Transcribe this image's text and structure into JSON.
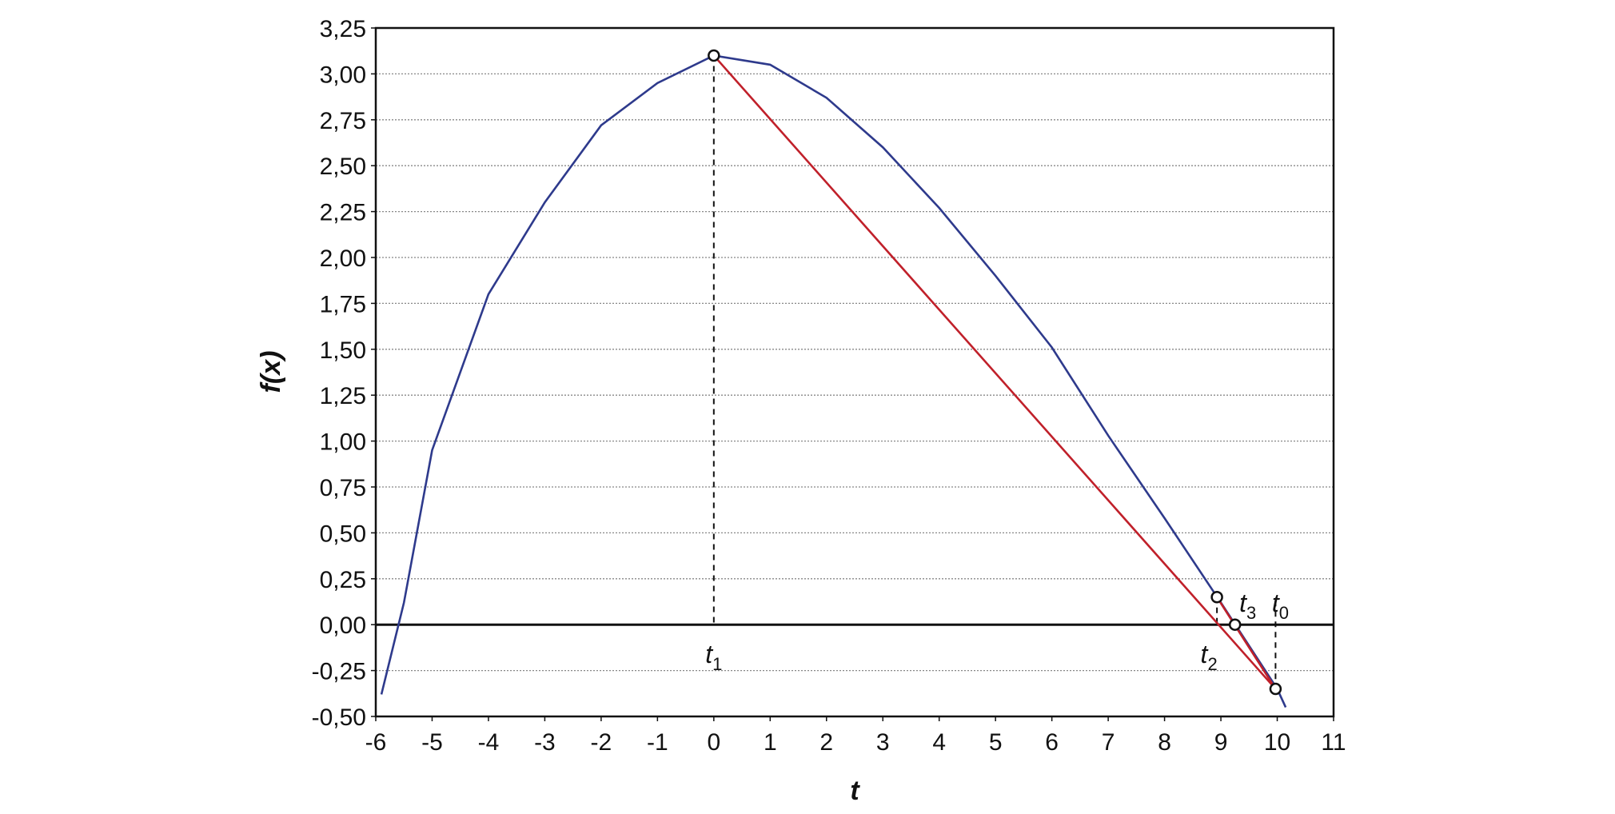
{
  "chart_data": {
    "type": "line",
    "xlabel": "t",
    "ylabel": "f(x)",
    "xlim": [
      -6,
      11
    ],
    "xticks": [
      -6,
      -5,
      -4,
      -3,
      -2,
      -1,
      0,
      1,
      2,
      3,
      4,
      5,
      6,
      7,
      8,
      9,
      10,
      11
    ],
    "ylim": [
      -0.5,
      3.25
    ],
    "yticks": [
      {
        "value": -0.5,
        "label": "-0,50"
      },
      {
        "value": -0.25,
        "label": "-0,25"
      },
      {
        "value": 0,
        "label": "0,00"
      },
      {
        "value": 0.25,
        "label": "0,25"
      },
      {
        "value": 0.5,
        "label": "0,50"
      },
      {
        "value": 0.75,
        "label": "0,75"
      },
      {
        "value": 1,
        "label": "1,00"
      },
      {
        "value": 1.25,
        "label": "1,25"
      },
      {
        "value": 1.5,
        "label": "1,50"
      },
      {
        "value": 1.75,
        "label": "1,75"
      },
      {
        "value": 2,
        "label": "2,00"
      },
      {
        "value": 2.25,
        "label": "2,25"
      },
      {
        "value": 2.5,
        "label": "2,50"
      },
      {
        "value": 2.75,
        "label": "2,75"
      },
      {
        "value": 3,
        "label": "3,00"
      },
      {
        "value": 3.25,
        "label": "3,25"
      }
    ],
    "grid": true,
    "series": [
      {
        "color": "#2e3a8c",
        "x": [
          -5.9,
          -5.5,
          -5,
          -4,
          -3,
          -2,
          -1,
          0,
          1,
          2,
          3,
          4,
          5,
          6,
          7,
          8,
          9,
          10,
          10.15
        ],
        "values": [
          -0.38,
          0.12,
          0.95,
          1.8,
          2.3,
          2.72,
          2.95,
          3.1,
          3.05,
          2.87,
          2.6,
          2.27,
          1.9,
          1.51,
          1.03,
          0.58,
          0.12,
          -0.35,
          -0.45
        ]
      },
      {
        "color": "#c0202a",
        "x": [
          0,
          9.97
        ],
        "values": [
          3.1,
          -0.35
        ]
      },
      {
        "color": "#c0202a",
        "x": [
          8.93,
          9.97
        ],
        "values": [
          0.15,
          -0.35
        ]
      }
    ],
    "points": {
      "x": [
        0,
        8.93,
        9.25,
        9.97
      ],
      "values": [
        3.1,
        0.15,
        0,
        -0.35
      ]
    },
    "annotations": [
      {
        "text": "t",
        "sub": "1",
        "x": 0
      },
      {
        "text": "t",
        "sub": "2",
        "x": 8.93
      },
      {
        "text": "t",
        "sub": "3",
        "x": 9.25
      },
      {
        "text": "t",
        "sub": "0",
        "x": 9.97
      }
    ]
  }
}
